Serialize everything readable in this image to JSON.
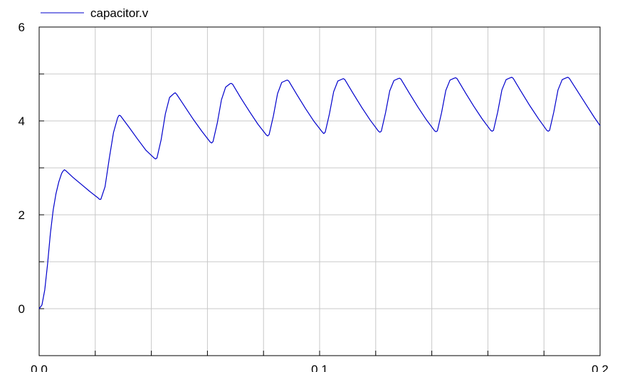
{
  "chart_data": {
    "type": "line",
    "title": "",
    "xlabel": "",
    "ylabel": "",
    "xlim": [
      0.0,
      0.2
    ],
    "ylim": [
      -1,
      6
    ],
    "x_ticks": [
      0.0,
      0.1,
      0.2
    ],
    "x_tick_labels": [
      "0.0",
      "0.1",
      "0.2"
    ],
    "x_minor_ticks": [
      0.02,
      0.04,
      0.06,
      0.08,
      0.12,
      0.14,
      0.16,
      0.18
    ],
    "y_ticks": [
      0,
      2,
      4,
      6
    ],
    "y_tick_labels": [
      "0",
      "2",
      "4",
      "6"
    ],
    "y_minor_ticks": [
      1,
      3,
      5
    ],
    "grid": true,
    "legend_position": "top-left",
    "series": [
      {
        "name": "capacitor.v",
        "color": "#0000cc",
        "points": [
          [
            0.0,
            0.0
          ],
          [
            0.001,
            0.08
          ],
          [
            0.002,
            0.4
          ],
          [
            0.003,
            0.95
          ],
          [
            0.004,
            1.6
          ],
          [
            0.005,
            2.1
          ],
          [
            0.006,
            2.45
          ],
          [
            0.007,
            2.7
          ],
          [
            0.008,
            2.88
          ],
          [
            0.0085,
            2.93
          ],
          [
            0.009,
            2.96
          ],
          [
            0.0095,
            2.94
          ],
          [
            0.012,
            2.8
          ],
          [
            0.015,
            2.65
          ],
          [
            0.018,
            2.5
          ],
          [
            0.021,
            2.36
          ],
          [
            0.0215,
            2.33
          ],
          [
            0.022,
            2.33
          ],
          [
            0.0235,
            2.6
          ],
          [
            0.025,
            3.2
          ],
          [
            0.0265,
            3.75
          ],
          [
            0.028,
            4.07
          ],
          [
            0.0285,
            4.12
          ],
          [
            0.029,
            4.11
          ],
          [
            0.032,
            3.87
          ],
          [
            0.035,
            3.62
          ],
          [
            0.038,
            3.38
          ],
          [
            0.041,
            3.21
          ],
          [
            0.0415,
            3.19
          ],
          [
            0.042,
            3.21
          ],
          [
            0.0435,
            3.6
          ],
          [
            0.045,
            4.15
          ],
          [
            0.0465,
            4.5
          ],
          [
            0.048,
            4.58
          ],
          [
            0.0485,
            4.6
          ],
          [
            0.049,
            4.57
          ],
          [
            0.052,
            4.3
          ],
          [
            0.055,
            4.03
          ],
          [
            0.058,
            3.78
          ],
          [
            0.061,
            3.55
          ],
          [
            0.0615,
            3.53
          ],
          [
            0.062,
            3.56
          ],
          [
            0.0635,
            3.95
          ],
          [
            0.065,
            4.45
          ],
          [
            0.0665,
            4.72
          ],
          [
            0.068,
            4.79
          ],
          [
            0.0685,
            4.8
          ],
          [
            0.069,
            4.78
          ],
          [
            0.072,
            4.48
          ],
          [
            0.075,
            4.2
          ],
          [
            0.078,
            3.93
          ],
          [
            0.081,
            3.7
          ],
          [
            0.0815,
            3.68
          ],
          [
            0.082,
            3.71
          ],
          [
            0.0835,
            4.1
          ],
          [
            0.085,
            4.58
          ],
          [
            0.0865,
            4.82
          ],
          [
            0.088,
            4.86
          ],
          [
            0.0885,
            4.87
          ],
          [
            0.089,
            4.85
          ],
          [
            0.092,
            4.55
          ],
          [
            0.095,
            4.26
          ],
          [
            0.098,
            3.99
          ],
          [
            0.101,
            3.76
          ],
          [
            0.1015,
            3.73
          ],
          [
            0.102,
            3.76
          ],
          [
            0.1035,
            4.15
          ],
          [
            0.105,
            4.62
          ],
          [
            0.1065,
            4.85
          ],
          [
            0.108,
            4.89
          ],
          [
            0.1085,
            4.9
          ],
          [
            0.109,
            4.88
          ],
          [
            0.112,
            4.58
          ],
          [
            0.115,
            4.29
          ],
          [
            0.118,
            4.02
          ],
          [
            0.121,
            3.78
          ],
          [
            0.1215,
            3.76
          ],
          [
            0.122,
            3.78
          ],
          [
            0.1235,
            4.17
          ],
          [
            0.125,
            4.64
          ],
          [
            0.1265,
            4.86
          ],
          [
            0.128,
            4.9
          ],
          [
            0.1285,
            4.91
          ],
          [
            0.129,
            4.89
          ],
          [
            0.132,
            4.59
          ],
          [
            0.135,
            4.3
          ],
          [
            0.138,
            4.03
          ],
          [
            0.141,
            3.79
          ],
          [
            0.1415,
            3.77
          ],
          [
            0.142,
            3.79
          ],
          [
            0.1435,
            4.18
          ],
          [
            0.145,
            4.65
          ],
          [
            0.1465,
            4.87
          ],
          [
            0.148,
            4.91
          ],
          [
            0.1485,
            4.92
          ],
          [
            0.149,
            4.9
          ],
          [
            0.152,
            4.6
          ],
          [
            0.155,
            4.31
          ],
          [
            0.158,
            4.04
          ],
          [
            0.161,
            3.8
          ],
          [
            0.1615,
            3.78
          ],
          [
            0.162,
            3.8
          ],
          [
            0.1635,
            4.19
          ],
          [
            0.165,
            4.66
          ],
          [
            0.1665,
            4.88
          ],
          [
            0.168,
            4.92
          ],
          [
            0.1685,
            4.93
          ],
          [
            0.169,
            4.91
          ],
          [
            0.172,
            4.61
          ],
          [
            0.175,
            4.32
          ],
          [
            0.178,
            4.05
          ],
          [
            0.181,
            3.8
          ],
          [
            0.1815,
            3.78
          ],
          [
            0.182,
            3.8
          ],
          [
            0.1835,
            4.19
          ],
          [
            0.185,
            4.66
          ],
          [
            0.1865,
            4.88
          ],
          [
            0.188,
            4.92
          ],
          [
            0.1885,
            4.93
          ],
          [
            0.189,
            4.91
          ],
          [
            0.192,
            4.63
          ],
          [
            0.195,
            4.35
          ],
          [
            0.198,
            4.07
          ],
          [
            0.2,
            3.9
          ]
        ]
      }
    ]
  }
}
